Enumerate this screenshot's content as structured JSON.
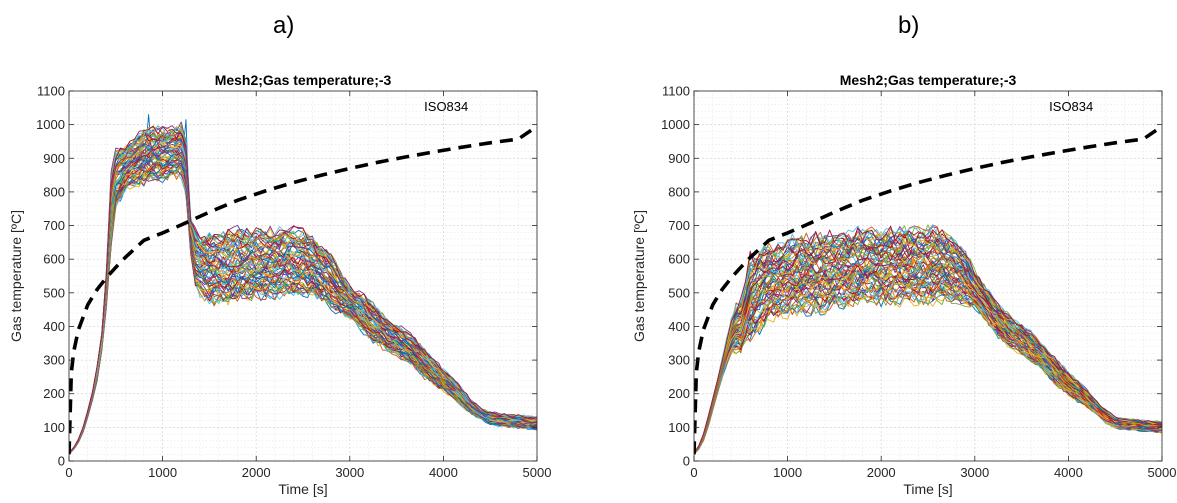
{
  "panels": [
    {
      "label": "a)"
    },
    {
      "label": "b)"
    }
  ],
  "chart_data": [
    {
      "type": "line",
      "title": "Mesh2;Gas temperature;-3",
      "xlabel": "Time [s]",
      "ylabel": "Gas temperature [ºC]",
      "xlim": [
        0,
        5000
      ],
      "ylim": [
        0,
        1100
      ],
      "xticks": [
        0,
        1000,
        2000,
        3000,
        4000,
        5000
      ],
      "yticks": [
        0,
        100,
        200,
        300,
        400,
        500,
        600,
        700,
        800,
        900,
        1000,
        1100
      ],
      "grid": true,
      "minor_grid": true,
      "annotation": "ISO834",
      "reference_curve": {
        "name": "ISO834",
        "style": "dashed-black",
        "x": [
          0,
          25,
          50,
          100,
          200,
          300,
          400,
          500,
          600,
          800,
          1000,
          1200,
          1500,
          1800,
          2100,
          2400,
          2700,
          3000,
          3300,
          3600,
          3900,
          4200,
          4500,
          4800,
          5000
        ],
        "y": [
          20,
          262,
          325,
          390,
          464,
          510,
          545,
          576,
          605,
          656,
          678,
          702,
          740,
          775,
          803,
          828,
          850,
          870,
          888,
          904,
          919,
          933,
          946,
          957,
          995
        ]
      },
      "ensemble": {
        "count": 70,
        "style": "multicolor",
        "x": [
          0,
          50,
          100,
          150,
          200,
          250,
          300,
          350,
          400,
          450,
          500,
          600,
          700,
          800,
          900,
          1000,
          1100,
          1200,
          1250,
          1300,
          1350,
          1400,
          1500,
          1700,
          1900,
          2100,
          2300,
          2500,
          2600,
          2700,
          2800,
          2900,
          3000,
          3100,
          3200,
          3300,
          3400,
          3500,
          3600,
          3700,
          3800,
          3900,
          4000,
          4100,
          4200,
          4300,
          4400,
          4500,
          4600,
          4800,
          5000
        ],
        "low": [
          20,
          35,
          55,
          85,
          130,
          180,
          240,
          330,
          460,
          640,
          760,
          810,
          820,
          830,
          840,
          840,
          850,
          850,
          800,
          620,
          520,
          500,
          480,
          480,
          490,
          490,
          500,
          500,
          495,
          480,
          460,
          440,
          430,
          400,
          370,
          350,
          330,
          320,
          300,
          280,
          250,
          230,
          210,
          190,
          165,
          140,
          125,
          110,
          105,
          100,
          95
        ],
        "high": [
          25,
          40,
          65,
          100,
          150,
          205,
          280,
          380,
          560,
          840,
          920,
          930,
          960,
          980,
          990,
          985,
          985,
          995,
          950,
          720,
          680,
          670,
          670,
          680,
          680,
          680,
          685,
          680,
          660,
          640,
          610,
          560,
          520,
          500,
          480,
          450,
          420,
          400,
          385,
          360,
          330,
          300,
          270,
          245,
          215,
          180,
          155,
          145,
          140,
          135,
          130
        ],
        "peaks": [
          {
            "x": 870,
            "y": 1030
          },
          {
            "x": 1230,
            "y": 1015
          }
        ]
      }
    },
    {
      "type": "line",
      "title": "Mesh2;Gas temperature;-3",
      "xlabel": "Time [s]",
      "ylabel": "Gas temperature [ºC]",
      "xlim": [
        0,
        5000
      ],
      "ylim": [
        0,
        1100
      ],
      "xticks": [
        0,
        1000,
        2000,
        3000,
        4000,
        5000
      ],
      "yticks": [
        0,
        100,
        200,
        300,
        400,
        500,
        600,
        700,
        800,
        900,
        1000,
        1100
      ],
      "grid": true,
      "minor_grid": true,
      "annotation": "ISO834",
      "reference_curve": {
        "name": "ISO834",
        "style": "dashed-black",
        "x": [
          0,
          25,
          50,
          100,
          200,
          300,
          400,
          500,
          600,
          800,
          1000,
          1200,
          1500,
          1800,
          2100,
          2400,
          2700,
          3000,
          3300,
          3600,
          3900,
          4200,
          4500,
          4800,
          5000
        ],
        "y": [
          20,
          262,
          325,
          390,
          464,
          510,
          545,
          576,
          605,
          656,
          678,
          702,
          740,
          775,
          803,
          828,
          850,
          870,
          888,
          904,
          919,
          933,
          946,
          957,
          995
        ]
      },
      "ensemble": {
        "count": 70,
        "style": "multicolor",
        "x": [
          0,
          50,
          100,
          150,
          200,
          250,
          300,
          350,
          400,
          450,
          500,
          550,
          600,
          700,
          800,
          900,
          1000,
          1200,
          1400,
          1600,
          1800,
          2000,
          2200,
          2400,
          2600,
          2700,
          2800,
          2900,
          3000,
          3100,
          3200,
          3300,
          3400,
          3500,
          3600,
          3700,
          3800,
          3900,
          4000,
          4100,
          4200,
          4300,
          4400,
          4500,
          4600,
          4800,
          5000
        ],
        "low": [
          20,
          35,
          60,
          100,
          150,
          200,
          250,
          290,
          320,
          330,
          320,
          360,
          370,
          400,
          430,
          440,
          445,
          450,
          460,
          470,
          480,
          480,
          480,
          480,
          480,
          480,
          475,
          470,
          460,
          430,
          390,
          360,
          340,
          320,
          300,
          280,
          250,
          220,
          200,
          180,
          160,
          140,
          115,
          100,
          95,
          90,
          85
        ],
        "high": [
          25,
          45,
          80,
          130,
          185,
          240,
          300,
          360,
          420,
          460,
          470,
          520,
          600,
          620,
          640,
          640,
          650,
          660,
          670,
          670,
          680,
          680,
          680,
          680,
          690,
          670,
          650,
          620,
          560,
          520,
          480,
          450,
          420,
          400,
          380,
          350,
          320,
          290,
          260,
          235,
          210,
          175,
          150,
          130,
          125,
          120,
          115
        ]
      }
    }
  ]
}
